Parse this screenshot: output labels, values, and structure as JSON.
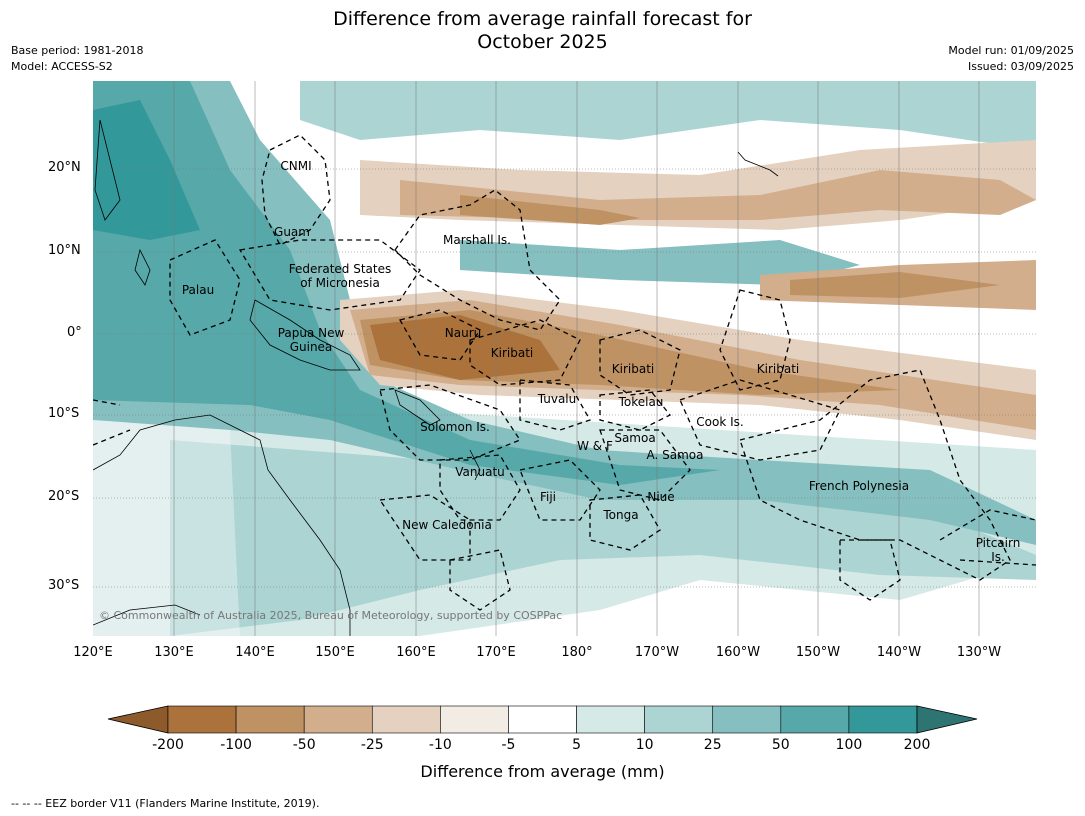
{
  "title_line1": "Difference from average rainfall forecast for",
  "title_line2": "October 2025",
  "meta_left": [
    "Base period: 1981-2018",
    "Model: ACCESS-S2"
  ],
  "meta_right": [
    "Model run: 01/09/2025",
    "Issued: 03/09/2025"
  ],
  "lat_labels": [
    "20°N",
    "10°N",
    "0°",
    "10°S",
    "20°S",
    "30°S"
  ],
  "lon_labels": [
    "120°E",
    "130°E",
    "140°E",
    "150°E",
    "160°E",
    "170°E",
    "180°",
    "170°W",
    "160°W",
    "150°W",
    "140°W",
    "130°W"
  ],
  "places": [
    "CNMI",
    "Guam",
    "Marshall Is.",
    "Federated States\nof Micronesia",
    "Palau",
    "Papua New\nGuinea",
    "Nauru",
    "Kiribati",
    "Kiribati",
    "Kiribati",
    "Tuvalu",
    "Tokelau",
    "Cook Is.",
    "Solomon Is.",
    "Samoa",
    "W & F",
    "A. Samoa",
    "Vanuatu",
    "Fiji",
    "Niue",
    "French Polynesia",
    "Tonga",
    "New Caledonia",
    "Pitcairn\nIs."
  ],
  "copyright": "© Commonwealth of Australia 2025, Bureau of Meteorology, supported by COSPPac",
  "colorbar": {
    "labels": [
      "-200",
      "-100",
      "-50",
      "-25",
      "-10",
      "-5",
      "5",
      "10",
      "25",
      "50",
      "100",
      "200"
    ],
    "colors": [
      "#8c5a2b",
      "#ab733b",
      "#bf9264",
      "#d2ae8c",
      "#e4d1bf",
      "#f2ece4",
      "#ffffff",
      "#d5e9e7",
      "#acd4d3",
      "#85bfc0",
      "#56a8a9",
      "#33989a",
      "#2e7472"
    ],
    "title": "Difference from average (mm)"
  },
  "footer": "--  --  -- EEZ border V11 (Flanders Marine Institute, 2019)."
}
